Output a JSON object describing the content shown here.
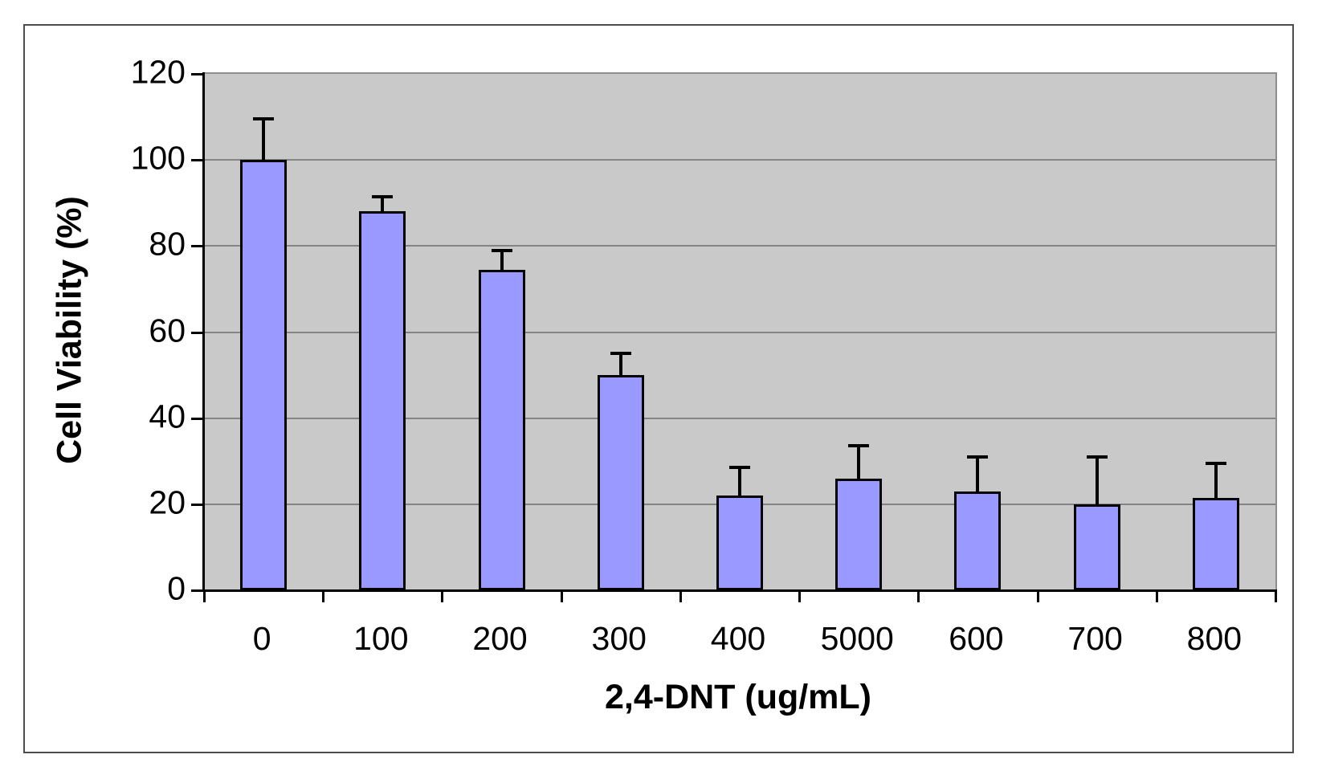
{
  "figure": {
    "background": "#FFFFFF",
    "border_color": "#4D4D4D"
  },
  "chart_data": {
    "type": "bar",
    "title": "",
    "xlabel": "2,4-DNT (ug/mL)",
    "ylabel": "Cell Viability (%)",
    "categories": [
      "0",
      "100",
      "200",
      "300",
      "400",
      "5000",
      "600",
      "700",
      "800"
    ],
    "values": [
      100,
      88,
      74.5,
      50,
      22,
      26,
      23,
      20,
      21.5
    ],
    "errors_up": [
      9.5,
      3.5,
      4.5,
      5,
      6.5,
      7.5,
      8,
      11,
      8
    ],
    "ylim": [
      0,
      120
    ],
    "yticks": [
      0,
      20,
      40,
      60,
      80,
      100,
      120
    ],
    "ytick_step": 20,
    "grid": "horizontal",
    "legend": "none",
    "error_bars": "upper-only",
    "colors": {
      "bar_fill": "#9999FF",
      "bar_border": "#000000",
      "error_bar": "#000000",
      "plot_background": "#C9C9C9",
      "plot_border": "#8E8E8E",
      "gridline": "#848484",
      "axis_line": "#000000",
      "text": "#000000"
    }
  }
}
